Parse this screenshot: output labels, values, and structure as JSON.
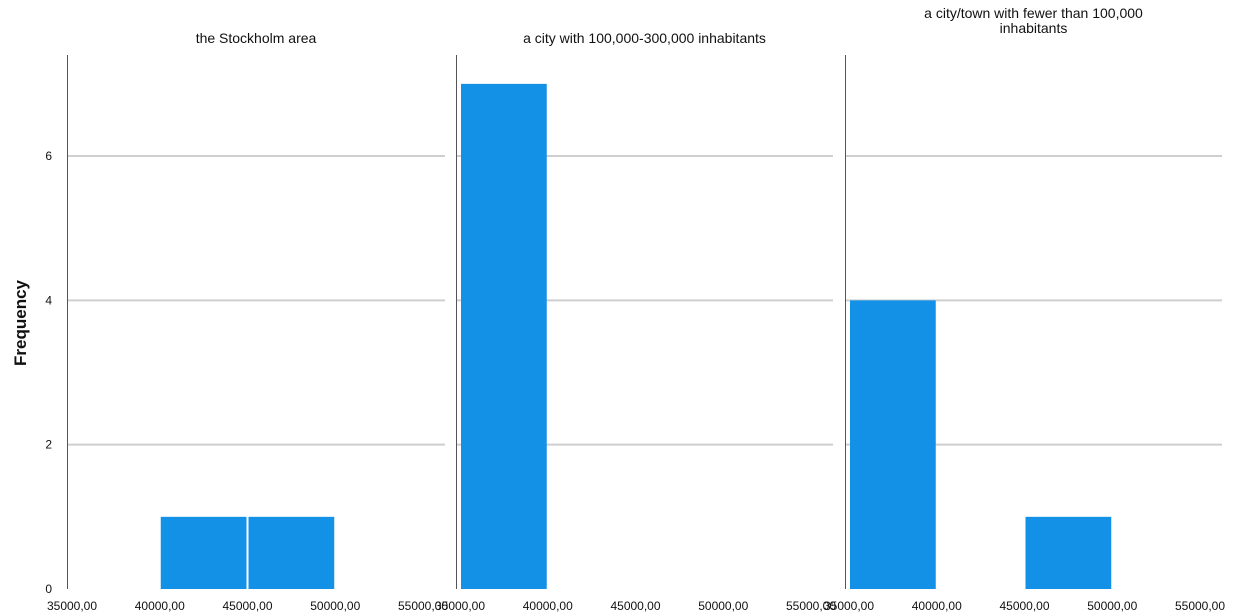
{
  "chart_data": {
    "type": "bar",
    "ylabel": "Frequency",
    "xlabel": "",
    "ylim": [
      0,
      7.4
    ],
    "y_ticks": [
      {
        "value": 0,
        "label": "0"
      },
      {
        "value": 2,
        "label": "2"
      },
      {
        "value": 4,
        "label": "4"
      },
      {
        "value": 6,
        "label": "6"
      }
    ],
    "x_ticks": [
      "35000,00",
      "40000,00",
      "45000,00",
      "50000,00",
      "55000,00"
    ],
    "x_tick_values": [
      35000,
      40000,
      45000,
      50000,
      55000
    ],
    "grid": true,
    "bar_color": "#1391e6",
    "panels": [
      {
        "title": [
          "the Stockholm area"
        ],
        "bins": [
          {
            "x0": 40000,
            "x1": 45000,
            "value": 1
          },
          {
            "x0": 45000,
            "x1": 50000,
            "value": 1
          }
        ]
      },
      {
        "title": [
          "a city with 100,000-300,000 inhabitants"
        ],
        "bins": [
          {
            "x0": 35000,
            "x1": 40000,
            "value": 7
          }
        ]
      },
      {
        "title": [
          "a city/town with fewer than 100,000",
          "inhabitants"
        ],
        "bins": [
          {
            "x0": 35000,
            "x1": 40000,
            "value": 4
          },
          {
            "x0": 45000,
            "x1": 50000,
            "value": 1
          }
        ]
      }
    ]
  }
}
